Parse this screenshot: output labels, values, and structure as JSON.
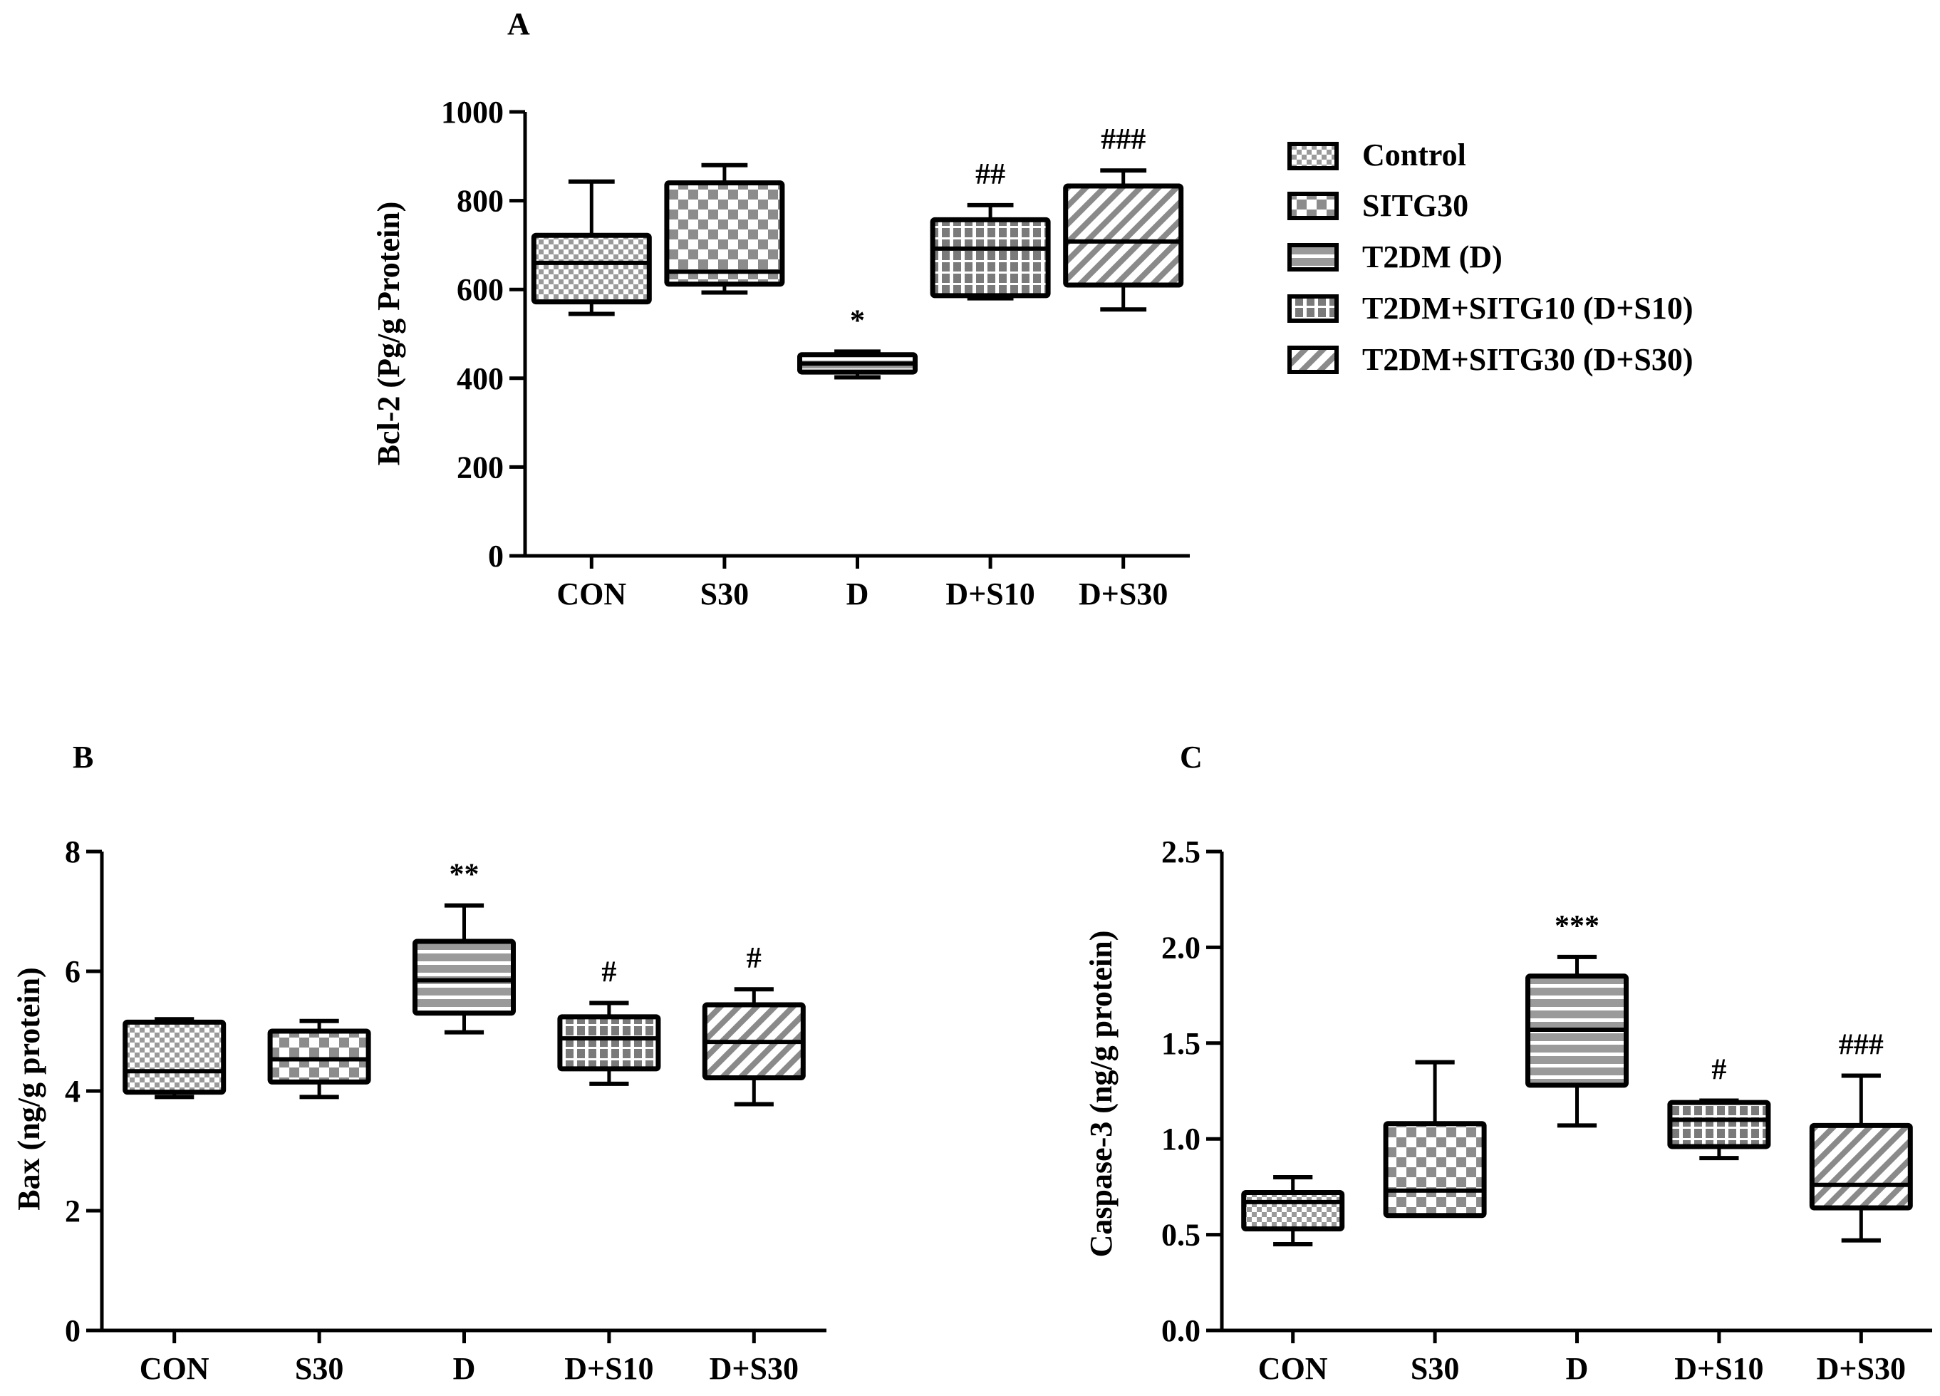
{
  "legend": [
    {
      "label": "Control",
      "pattern": "pat-control"
    },
    {
      "label": "SITG30",
      "pattern": "pat-sitg30"
    },
    {
      "label": "T2DM (D)",
      "pattern": "pat-t2dm"
    },
    {
      "label": "T2DM+SITG10 (D+S10)",
      "pattern": "pat-ds10"
    },
    {
      "label": "T2DM+SITG30 (D+S30)",
      "pattern": "pat-ds30"
    }
  ],
  "chart_data": [
    {
      "panel": "A",
      "type": "box",
      "ylabel": "Bcl-2 (Pg/g Protein)",
      "xlabel": "",
      "ylim": [
        0,
        1000
      ],
      "yticks": [
        0,
        200,
        400,
        600,
        800,
        1000
      ],
      "ytick_labels": [
        "0",
        "200",
        "400",
        "600",
        "800",
        "1000"
      ],
      "categories": [
        "CON",
        "S30",
        "D",
        "D+S10",
        "D+S30"
      ],
      "boxes": [
        {
          "min": 545,
          "q1": 572,
          "median": 660,
          "q3": 722,
          "max": 843
        },
        {
          "min": 593,
          "q1": 612,
          "median": 640,
          "q3": 840,
          "max": 880
        },
        {
          "min": 402,
          "q1": 414,
          "median": 433,
          "q3": 453,
          "max": 460
        },
        {
          "min": 580,
          "q1": 586,
          "median": 692,
          "q3": 757,
          "max": 790
        },
        {
          "min": 555,
          "q1": 610,
          "median": 708,
          "q3": 833,
          "max": 868
        }
      ],
      "annotations": [
        "",
        "",
        "*",
        "##",
        "###"
      ]
    },
    {
      "panel": "B",
      "type": "box",
      "ylabel": "Bax (ng/g protein)",
      "xlabel": "",
      "ylim": [
        0,
        8
      ],
      "yticks": [
        0,
        2,
        4,
        6,
        8
      ],
      "ytick_labels": [
        "0",
        "2",
        "4",
        "6",
        "8"
      ],
      "categories": [
        "CON",
        "S30",
        "D",
        "D+S10",
        "D+S30"
      ],
      "boxes": [
        {
          "min": 3.9,
          "q1": 3.98,
          "median": 4.33,
          "q3": 5.15,
          "max": 5.2
        },
        {
          "min": 3.9,
          "q1": 4.15,
          "median": 4.53,
          "q3": 5.0,
          "max": 5.17
        },
        {
          "min": 4.98,
          "q1": 5.3,
          "median": 5.85,
          "q3": 6.5,
          "max": 7.1
        },
        {
          "min": 4.12,
          "q1": 4.37,
          "median": 4.88,
          "q3": 5.24,
          "max": 5.47
        },
        {
          "min": 3.78,
          "q1": 4.22,
          "median": 4.82,
          "q3": 5.44,
          "max": 5.7
        }
      ],
      "annotations": [
        "",
        "",
        "**",
        "#",
        "#"
      ]
    },
    {
      "panel": "C",
      "type": "box",
      "ylabel": "Caspase-3 (ng/g protein)",
      "xlabel": "",
      "ylim": [
        0,
        2.5
      ],
      "yticks": [
        0,
        0.5,
        1.0,
        1.5,
        2.0,
        2.5
      ],
      "ytick_labels": [
        "0.0",
        "0.5",
        "1.0",
        "1.5",
        "2.0",
        "2.5"
      ],
      "categories": [
        "CON",
        "S30",
        "D",
        "D+S10",
        "D+S30"
      ],
      "boxes": [
        {
          "min": 0.45,
          "q1": 0.53,
          "median": 0.67,
          "q3": 0.72,
          "max": 0.8
        },
        {
          "min": 0.6,
          "q1": 0.6,
          "median": 0.73,
          "q3": 1.08,
          "max": 1.4
        },
        {
          "min": 1.07,
          "q1": 1.28,
          "median": 1.57,
          "q3": 1.85,
          "max": 1.95
        },
        {
          "min": 0.9,
          "q1": 0.96,
          "median": 1.1,
          "q3": 1.19,
          "max": 1.2
        },
        {
          "min": 0.47,
          "q1": 0.64,
          "median": 0.76,
          "q3": 1.07,
          "max": 1.33
        }
      ],
      "annotations": [
        "",
        "",
        "***",
        "#",
        "###"
      ]
    }
  ]
}
